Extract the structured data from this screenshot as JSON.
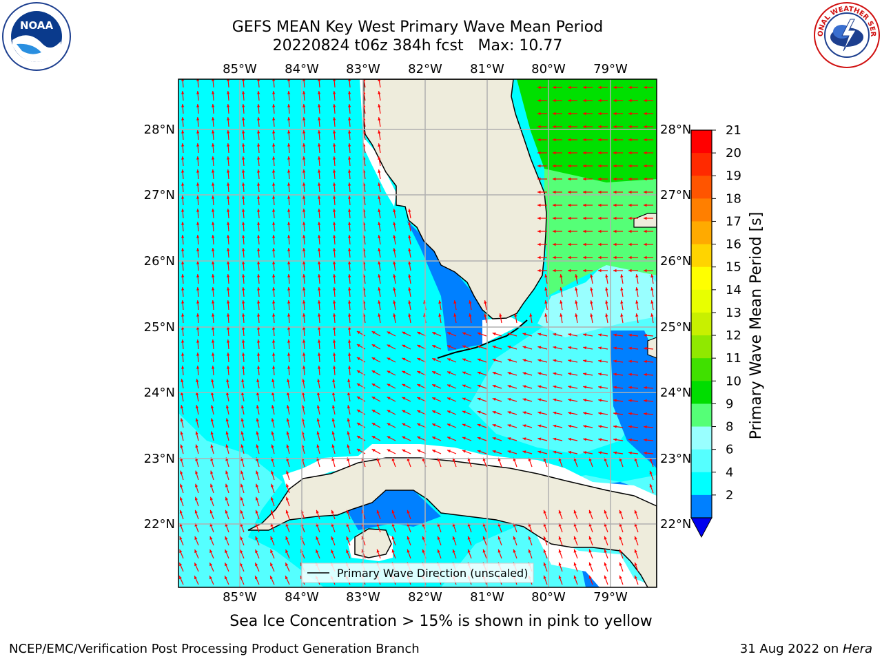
{
  "title": {
    "line1": "GEFS MEAN Key West Primary Wave Mean Period",
    "line2": "20220824 t06z 384h fcst   Max: 10.77"
  },
  "map": {
    "lon_labels": [
      "85°W",
      "84°W",
      "83°W",
      "82°W",
      "81°W",
      "80°W",
      "79°W"
    ],
    "lat_labels": [
      "28°N",
      "27°N",
      "26°N",
      "25°N",
      "24°N",
      "23°N",
      "22°N"
    ],
    "legend_label": "Primary Wave Direction (unscaled)",
    "colors": {
      "land": "#eeecdc",
      "arrow": "#ff0000",
      "grid": "#b0b0b0",
      "cyan": "#00ffff",
      "light_cyan": "#55ffff",
      "pale_cyan": "#99ffff",
      "blue": "#0080ff",
      "green_light": "#55ff77",
      "green": "#00e000"
    }
  },
  "colorbar": {
    "label": "Primary Wave Mean Period [s]",
    "ticks": [
      "21",
      "20",
      "19",
      "18",
      "17",
      "16",
      "15",
      "14",
      "13",
      "12",
      "11",
      "10",
      "9",
      "8",
      "6",
      "4",
      "2"
    ],
    "colors": [
      "#ff0000",
      "#ff2a00",
      "#ff5500",
      "#ff7f00",
      "#ffaa00",
      "#ffd400",
      "#ffff00",
      "#e8ff00",
      "#c8f000",
      "#90e800",
      "#40e000",
      "#00dd00",
      "#55ff77",
      "#99ffff",
      "#55ffff",
      "#00ffff",
      "#0080ff"
    ],
    "under_color": "#0000ee"
  },
  "logos": {
    "noaa_text": "NOAA",
    "nws_text": "NATIONAL WEATHER SERVICE"
  },
  "subtitle": "Sea Ice Concentration > 15% is shown in pink to yellow",
  "footer": {
    "left": "NCEP/EMC/Verification Post Processing Product Generation Branch",
    "right_prefix": "31 Aug 2022 on ",
    "right_host": "Hera"
  }
}
